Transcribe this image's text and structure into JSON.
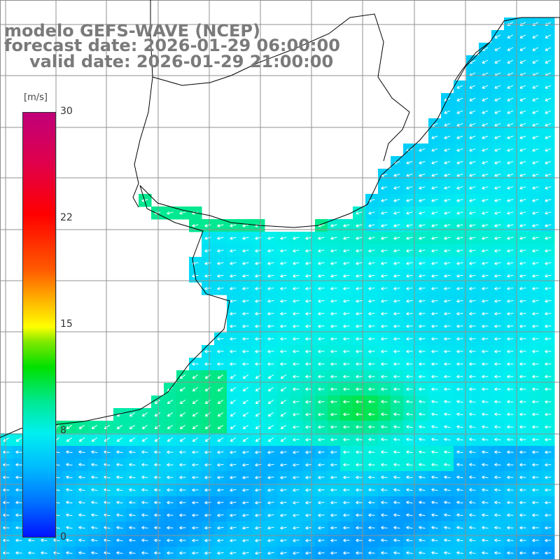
{
  "title": {
    "line1": "modelo GEFS-WAVE (NCEP)",
    "line2": "forecast date: 2026-01-29 06:00:00",
    "line3": "valid date: 2026-01-29 21:00:00"
  },
  "colorbar": {
    "unit": "[m/s]",
    "ticks": [
      "30",
      "22",
      "15",
      "8",
      "0"
    ],
    "tick_values": [
      30,
      22,
      15,
      8,
      0
    ],
    "range": [
      0,
      30
    ]
  },
  "field": {
    "variable": "wind speed and direction",
    "colors": {
      "land": "#ffffff",
      "coast": "#000000",
      "grid": "#909090",
      "arrow": "#ffffff"
    }
  }
}
